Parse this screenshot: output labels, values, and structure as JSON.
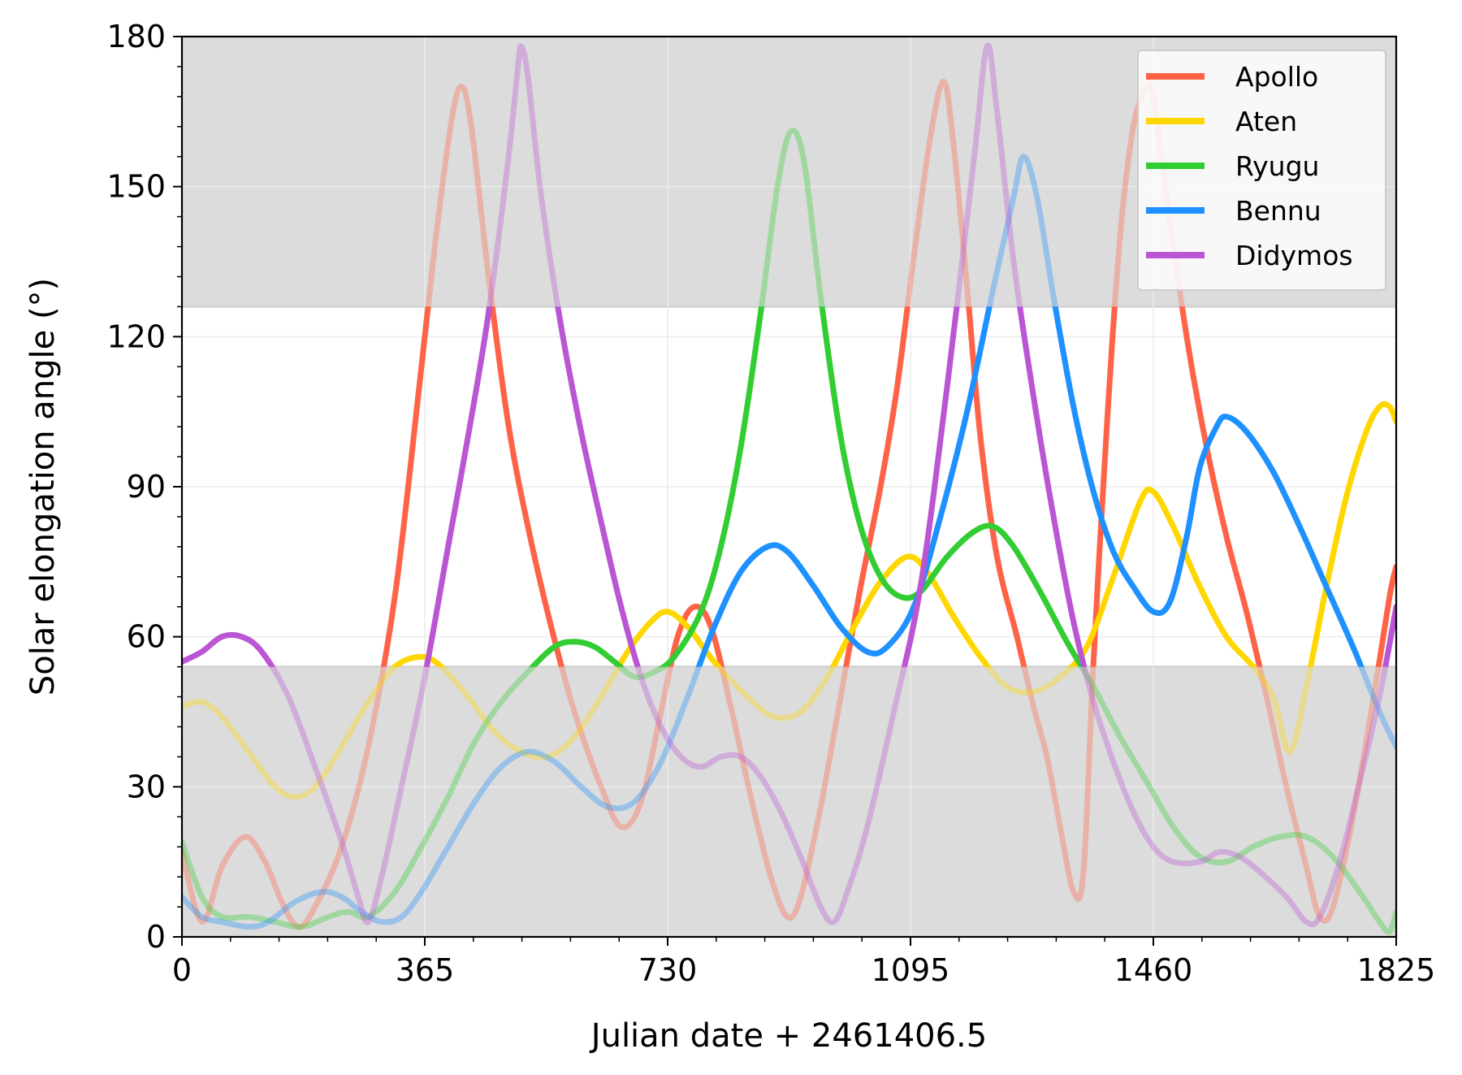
{
  "chart_data": {
    "type": "line",
    "xlabel": "Julian date + 2461406.5",
    "ylabel": "Solar elongation angle (°)",
    "xlim": [
      0,
      1825
    ],
    "ylim": [
      0,
      180
    ],
    "xticks": [
      0,
      365,
      730,
      1095,
      1460,
      1825
    ],
    "yticks": [
      0,
      30,
      60,
      90,
      120,
      150,
      180
    ],
    "xtick_labels": [
      "0",
      "365",
      "730",
      "1095",
      "1460",
      "1825"
    ],
    "ytick_labels": [
      "0",
      "30",
      "60",
      "90",
      "120",
      "150",
      "180"
    ],
    "grid": true,
    "legend_position": "top-right",
    "shaded_bands": [
      {
        "y_from": 0,
        "y_to": 54,
        "color": "#dcdcdc"
      },
      {
        "y_from": 126,
        "y_to": 180,
        "color": "#dcdcdc"
      }
    ],
    "visible_range": [
      54,
      126
    ],
    "series": [
      {
        "name": "Apollo",
        "color": "#ff6347",
        "points": [
          [
            0,
            17
          ],
          [
            30,
            3
          ],
          [
            60,
            14
          ],
          [
            95,
            20
          ],
          [
            125,
            15
          ],
          [
            150,
            7
          ],
          [
            175,
            2
          ],
          [
            200,
            6
          ],
          [
            240,
            18
          ],
          [
            280,
            38
          ],
          [
            320,
            68
          ],
          [
            355,
            108
          ],
          [
            380,
            138
          ],
          [
            405,
            163
          ],
          [
            420,
            170
          ],
          [
            435,
            162
          ],
          [
            460,
            133
          ],
          [
            490,
            103
          ],
          [
            520,
            82
          ],
          [
            555,
            62
          ],
          [
            590,
            45
          ],
          [
            630,
            30
          ],
          [
            660,
            22
          ],
          [
            690,
            27
          ],
          [
            720,
            45
          ],
          [
            745,
            60
          ],
          [
            770,
            66
          ],
          [
            795,
            62
          ],
          [
            825,
            46
          ],
          [
            855,
            28
          ],
          [
            885,
            12
          ],
          [
            910,
            4
          ],
          [
            930,
            8
          ],
          [
            960,
            26
          ],
          [
            990,
            48
          ],
          [
            1020,
            70
          ],
          [
            1050,
            90
          ],
          [
            1075,
            110
          ],
          [
            1100,
            136
          ],
          [
            1125,
            160
          ],
          [
            1145,
            171
          ],
          [
            1160,
            158
          ],
          [
            1180,
            130
          ],
          [
            1200,
            100
          ],
          [
            1225,
            76
          ],
          [
            1255,
            60
          ],
          [
            1280,
            46
          ],
          [
            1300,
            36
          ],
          [
            1320,
            22
          ],
          [
            1340,
            9
          ],
          [
            1355,
            13
          ],
          [
            1370,
            55
          ],
          [
            1390,
            102
          ],
          [
            1410,
            140
          ],
          [
            1430,
            162
          ],
          [
            1450,
            170
          ],
          [
            1460,
            168
          ],
          [
            1480,
            148
          ],
          [
            1510,
            120
          ],
          [
            1540,
            98
          ],
          [
            1570,
            80
          ],
          [
            1600,
            65
          ],
          [
            1630,
            48
          ],
          [
            1660,
            30
          ],
          [
            1690,
            14
          ],
          [
            1710,
            4
          ],
          [
            1730,
            6
          ],
          [
            1760,
            24
          ],
          [
            1790,
            47
          ],
          [
            1815,
            68
          ],
          [
            1825,
            74
          ]
        ]
      },
      {
        "name": "Aten",
        "color": "#ffd700",
        "points": [
          [
            0,
            46
          ],
          [
            30,
            47
          ],
          [
            60,
            44
          ],
          [
            100,
            37
          ],
          [
            140,
            30
          ],
          [
            170,
            28
          ],
          [
            200,
            30
          ],
          [
            240,
            38
          ],
          [
            280,
            47
          ],
          [
            320,
            54
          ],
          [
            360,
            56
          ],
          [
            390,
            54
          ],
          [
            430,
            48
          ],
          [
            470,
            41
          ],
          [
            510,
            37
          ],
          [
            550,
            36
          ],
          [
            590,
            40
          ],
          [
            630,
            48
          ],
          [
            670,
            57
          ],
          [
            705,
            63
          ],
          [
            730,
            65
          ],
          [
            760,
            62
          ],
          [
            800,
            55
          ],
          [
            850,
            48
          ],
          [
            890,
            44
          ],
          [
            930,
            45
          ],
          [
            970,
            52
          ],
          [
            1010,
            62
          ],
          [
            1050,
            71
          ],
          [
            1090,
            76
          ],
          [
            1120,
            73
          ],
          [
            1160,
            64
          ],
          [
            1200,
            56
          ],
          [
            1240,
            50
          ],
          [
            1280,
            49
          ],
          [
            1320,
            52
          ],
          [
            1360,
            58
          ],
          [
            1400,
            72
          ],
          [
            1440,
            87
          ],
          [
            1460,
            89
          ],
          [
            1490,
            82
          ],
          [
            1530,
            70
          ],
          [
            1570,
            60
          ],
          [
            1610,
            54
          ],
          [
            1640,
            48
          ],
          [
            1665,
            37
          ],
          [
            1690,
            50
          ],
          [
            1720,
            70
          ],
          [
            1750,
            88
          ],
          [
            1780,
            101
          ],
          [
            1800,
            106
          ],
          [
            1815,
            106
          ],
          [
            1825,
            103
          ]
        ]
      },
      {
        "name": "Ryugu",
        "color": "#32cd32",
        "points": [
          [
            0,
            19
          ],
          [
            30,
            8
          ],
          [
            60,
            4
          ],
          [
            100,
            4
          ],
          [
            140,
            3
          ],
          [
            180,
            2
          ],
          [
            220,
            4
          ],
          [
            250,
            5
          ],
          [
            280,
            4
          ],
          [
            320,
            9
          ],
          [
            360,
            18
          ],
          [
            400,
            28
          ],
          [
            440,
            39
          ],
          [
            480,
            47
          ],
          [
            520,
            53
          ],
          [
            560,
            58
          ],
          [
            590,
            59
          ],
          [
            620,
            58
          ],
          [
            650,
            55
          ],
          [
            680,
            52
          ],
          [
            710,
            53
          ],
          [
            740,
            56
          ],
          [
            780,
            65
          ],
          [
            810,
            78
          ],
          [
            840,
            98
          ],
          [
            870,
            125
          ],
          [
            895,
            150
          ],
          [
            915,
            161
          ],
          [
            935,
            155
          ],
          [
            960,
            128
          ],
          [
            990,
            100
          ],
          [
            1020,
            82
          ],
          [
            1050,
            72
          ],
          [
            1080,
            68
          ],
          [
            1110,
            69
          ],
          [
            1150,
            76
          ],
          [
            1190,
            81
          ],
          [
            1220,
            82
          ],
          [
            1250,
            78
          ],
          [
            1290,
            69
          ],
          [
            1330,
            59
          ],
          [
            1370,
            50
          ],
          [
            1410,
            40
          ],
          [
            1450,
            31
          ],
          [
            1490,
            22
          ],
          [
            1530,
            16
          ],
          [
            1570,
            15
          ],
          [
            1610,
            18
          ],
          [
            1650,
            20
          ],
          [
            1690,
            20
          ],
          [
            1730,
            16
          ],
          [
            1770,
            9
          ],
          [
            1800,
            3
          ],
          [
            1815,
            1
          ],
          [
            1825,
            5
          ]
        ]
      },
      {
        "name": "Bennu",
        "color": "#1e90ff",
        "points": [
          [
            0,
            8
          ],
          [
            30,
            4
          ],
          [
            60,
            3
          ],
          [
            100,
            2
          ],
          [
            130,
            3
          ],
          [
            170,
            7
          ],
          [
            210,
            9
          ],
          [
            240,
            8
          ],
          [
            270,
            5
          ],
          [
            300,
            3
          ],
          [
            330,
            4
          ],
          [
            360,
            9
          ],
          [
            400,
            18
          ],
          [
            440,
            27
          ],
          [
            480,
            34
          ],
          [
            520,
            37
          ],
          [
            560,
            35
          ],
          [
            600,
            30
          ],
          [
            640,
            26
          ],
          [
            680,
            27
          ],
          [
            720,
            35
          ],
          [
            760,
            48
          ],
          [
            800,
            62
          ],
          [
            840,
            73
          ],
          [
            880,
            78
          ],
          [
            910,
            77
          ],
          [
            950,
            70
          ],
          [
            990,
            62
          ],
          [
            1030,
            57
          ],
          [
            1060,
            58
          ],
          [
            1100,
            66
          ],
          [
            1140,
            84
          ],
          [
            1180,
            105
          ],
          [
            1220,
            130
          ],
          [
            1250,
            148
          ],
          [
            1265,
            156
          ],
          [
            1285,
            148
          ],
          [
            1310,
            128
          ],
          [
            1340,
            106
          ],
          [
            1370,
            89
          ],
          [
            1400,
            77
          ],
          [
            1430,
            70
          ],
          [
            1460,
            65
          ],
          [
            1485,
            67
          ],
          [
            1510,
            80
          ],
          [
            1530,
            94
          ],
          [
            1555,
            102
          ],
          [
            1570,
            104
          ],
          [
            1600,
            101
          ],
          [
            1640,
            93
          ],
          [
            1680,
            82
          ],
          [
            1720,
            70
          ],
          [
            1760,
            58
          ],
          [
            1800,
            45
          ],
          [
            1825,
            38
          ]
        ]
      },
      {
        "name": "Didymos",
        "color": "#ba55d3",
        "points": [
          [
            0,
            55
          ],
          [
            30,
            57
          ],
          [
            60,
            60
          ],
          [
            90,
            60
          ],
          [
            120,
            57
          ],
          [
            160,
            48
          ],
          [
            200,
            34
          ],
          [
            240,
            19
          ],
          [
            265,
            8
          ],
          [
            280,
            3
          ],
          [
            300,
            12
          ],
          [
            330,
            30
          ],
          [
            365,
            52
          ],
          [
            400,
            78
          ],
          [
            430,
            100
          ],
          [
            460,
            124
          ],
          [
            490,
            155
          ],
          [
            505,
            174
          ],
          [
            510,
            178
          ],
          [
            520,
            172
          ],
          [
            540,
            148
          ],
          [
            570,
            122
          ],
          [
            600,
            101
          ],
          [
            630,
            83
          ],
          [
            660,
            66
          ],
          [
            690,
            52
          ],
          [
            720,
            42
          ],
          [
            750,
            36
          ],
          [
            780,
            34
          ],
          [
            810,
            36
          ],
          [
            840,
            36
          ],
          [
            870,
            32
          ],
          [
            900,
            25
          ],
          [
            930,
            16
          ],
          [
            960,
            6
          ],
          [
            980,
            3
          ],
          [
            1000,
            9
          ],
          [
            1030,
            22
          ],
          [
            1070,
            45
          ],
          [
            1110,
            70
          ],
          [
            1150,
            110
          ],
          [
            1190,
            155
          ],
          [
            1210,
            178
          ],
          [
            1225,
            165
          ],
          [
            1250,
            135
          ],
          [
            1280,
            108
          ],
          [
            1310,
            84
          ],
          [
            1340,
            63
          ],
          [
            1370,
            47
          ],
          [
            1400,
            35
          ],
          [
            1430,
            25
          ],
          [
            1460,
            18
          ],
          [
            1490,
            15
          ],
          [
            1530,
            15
          ],
          [
            1560,
            17
          ],
          [
            1590,
            16
          ],
          [
            1620,
            13
          ],
          [
            1660,
            8
          ],
          [
            1690,
            3
          ],
          [
            1710,
            4
          ],
          [
            1740,
            15
          ],
          [
            1770,
            31
          ],
          [
            1800,
            48
          ],
          [
            1825,
            66
          ]
        ]
      }
    ]
  }
}
